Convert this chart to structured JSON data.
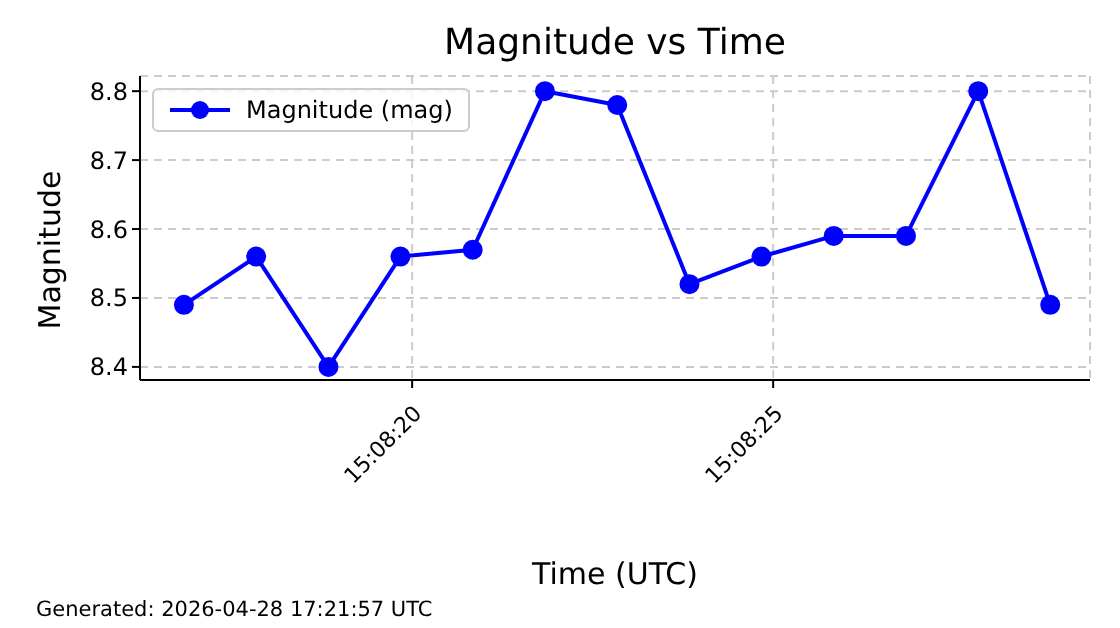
{
  "chart_data": {
    "type": "line",
    "title": "Magnitude vs Time",
    "xlabel": "Time (UTC)",
    "ylabel": "Magnitude",
    "annotations": [
      "Generated: 2026-04-28 17:21:57 UTC"
    ],
    "x": [
      15.138011,
      15.138289,
      15.138567,
      15.138844,
      15.139122,
      15.1394,
      15.139678,
      15.139956,
      15.140233,
      15.140511,
      15.140789,
      15.141067,
      15.141344
    ],
    "series": [
      {
        "name": "Magnitude (mag)",
        "color": "#0000ff",
        "values": [
          8.49,
          8.56,
          8.4,
          8.56,
          8.57,
          8.8,
          8.78,
          8.52,
          8.56,
          8.59,
          8.59,
          8.8,
          8.49
        ]
      }
    ],
    "xlim": [
      15.137842,
      15.141497
    ],
    "xticks": [
      {
        "value": 15.138889,
        "label": "15:08:20"
      },
      {
        "value": 15.140278,
        "label": "15:08:25"
      }
    ],
    "ylim": [
      8.381,
      8.822
    ],
    "yticks": [
      8.4,
      8.5,
      8.6,
      8.7,
      8.8
    ],
    "grid": true,
    "legend": "top left",
    "marker": "circle",
    "line_style": "solid"
  }
}
